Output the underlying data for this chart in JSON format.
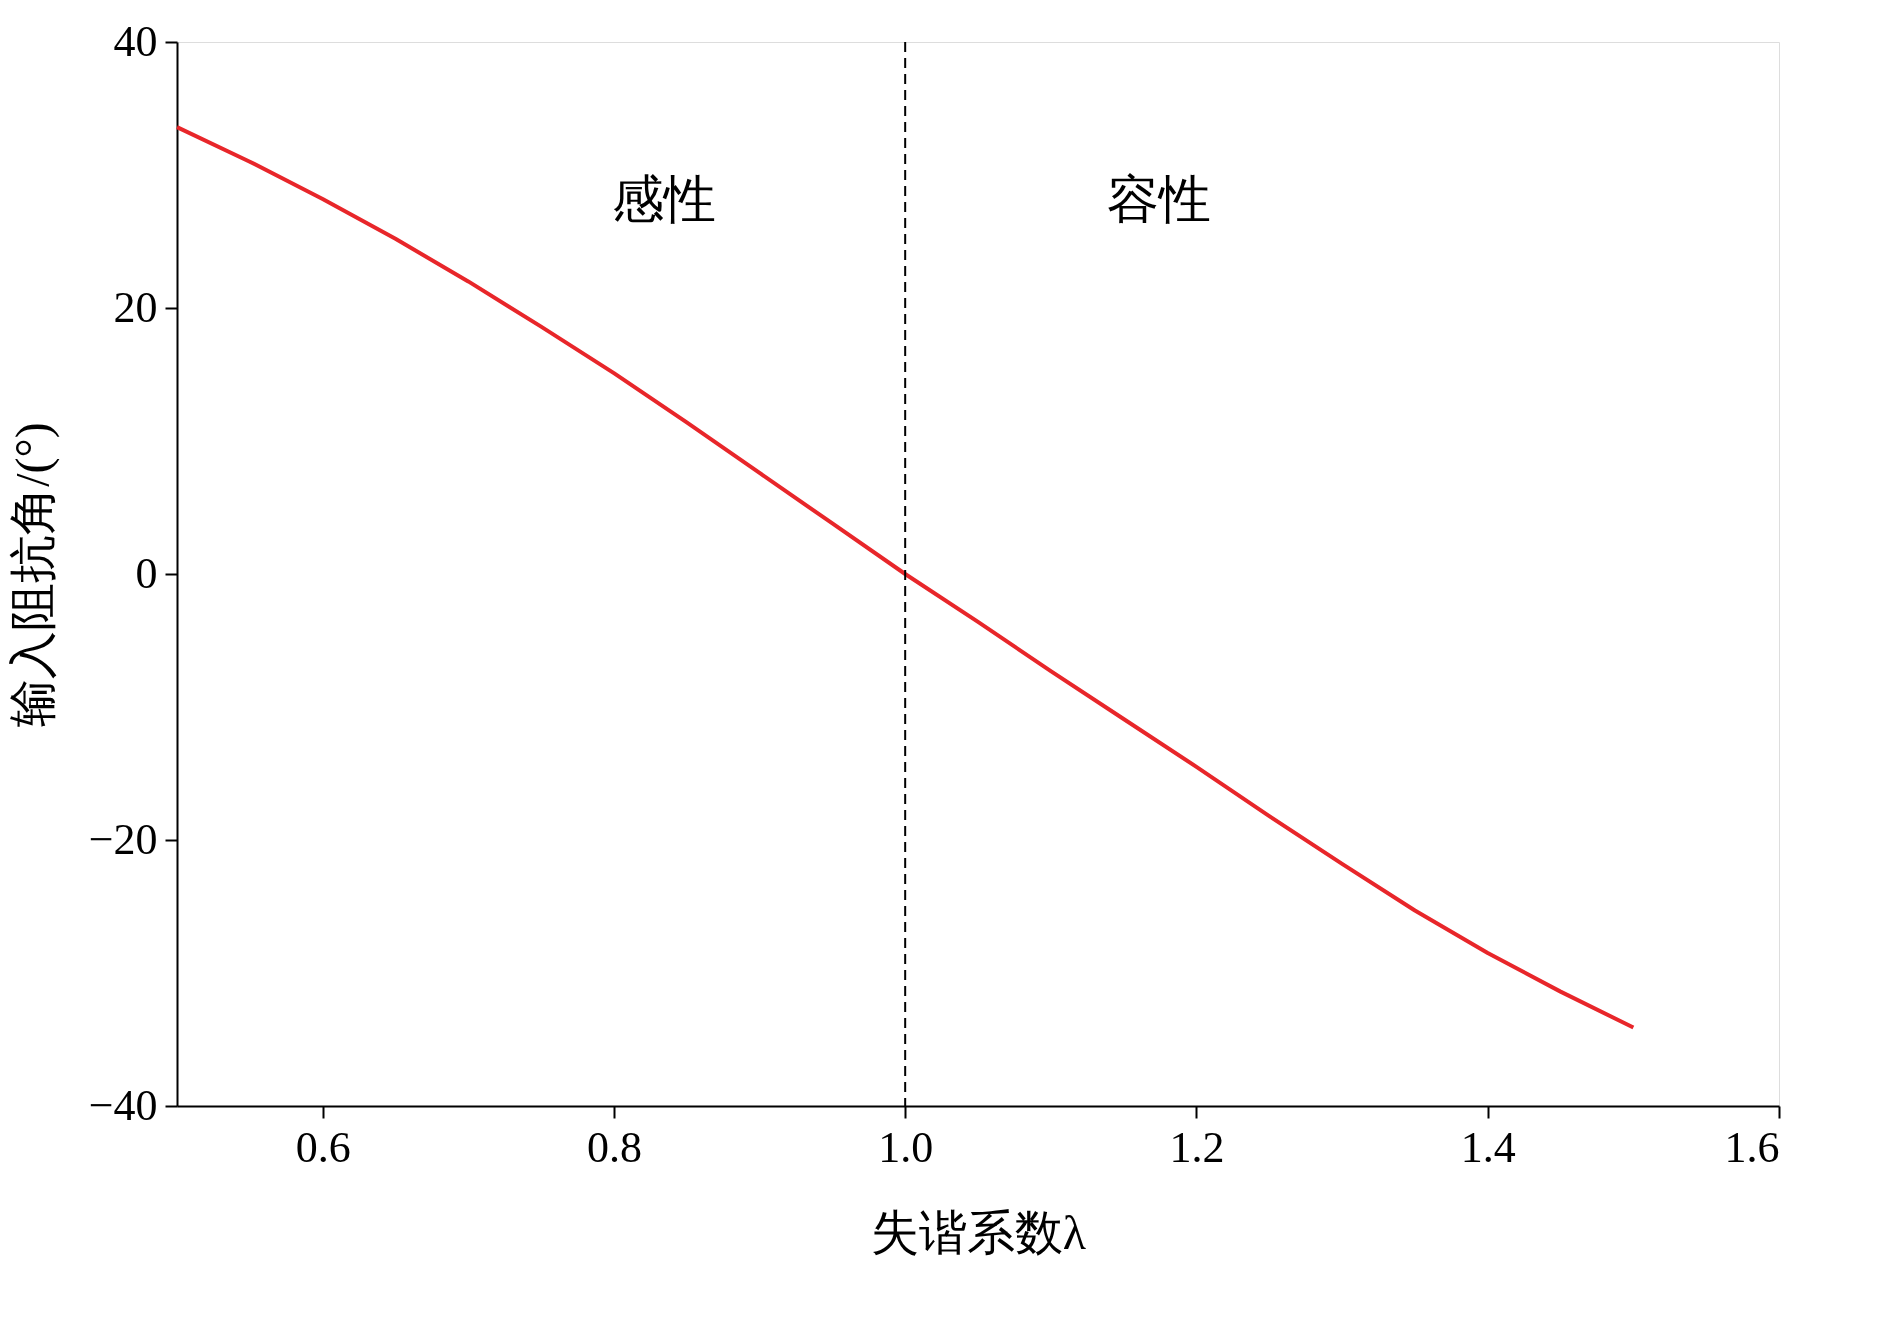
{
  "chart_data": {
    "type": "line",
    "xlabel": "失谐系数λ",
    "ylabel": "输入阻抗角/(°)",
    "series": [
      {
        "color": "#e8262a",
        "x": [
          0.5,
          0.55,
          0.6,
          0.65,
          0.7,
          0.75,
          0.8,
          0.85,
          0.9,
          0.95,
          1.0,
          1.05,
          1.1,
          1.15,
          1.2,
          1.25,
          1.3,
          1.35,
          1.4,
          1.45,
          1.5
        ],
        "values": [
          33.6,
          31.0,
          28.2,
          25.2,
          22.0,
          18.6,
          15.1,
          11.4,
          7.6,
          3.8,
          0,
          -3.6,
          -7.3,
          -10.9,
          -14.5,
          -18.2,
          -21.8,
          -25.3,
          -28.5,
          -31.4,
          -34.1
        ]
      }
    ],
    "xlim": [
      0.5,
      1.6
    ],
    "xticks": [
      0.6,
      0.8,
      {
        "value": 1.0,
        "label": "1.0"
      },
      1.2,
      1.4,
      1.6
    ],
    "ylim": [
      -40,
      40
    ],
    "yticks": [
      -40,
      -20,
      0,
      20,
      40
    ],
    "ref_lines": [
      {
        "axis": "x",
        "value": 1.0,
        "color": "#000000",
        "line_style": "dashed"
      }
    ],
    "annotations": [
      "感性",
      "容性"
    ],
    "grid": false,
    "line_style": "solid",
    "marker": "none"
  }
}
